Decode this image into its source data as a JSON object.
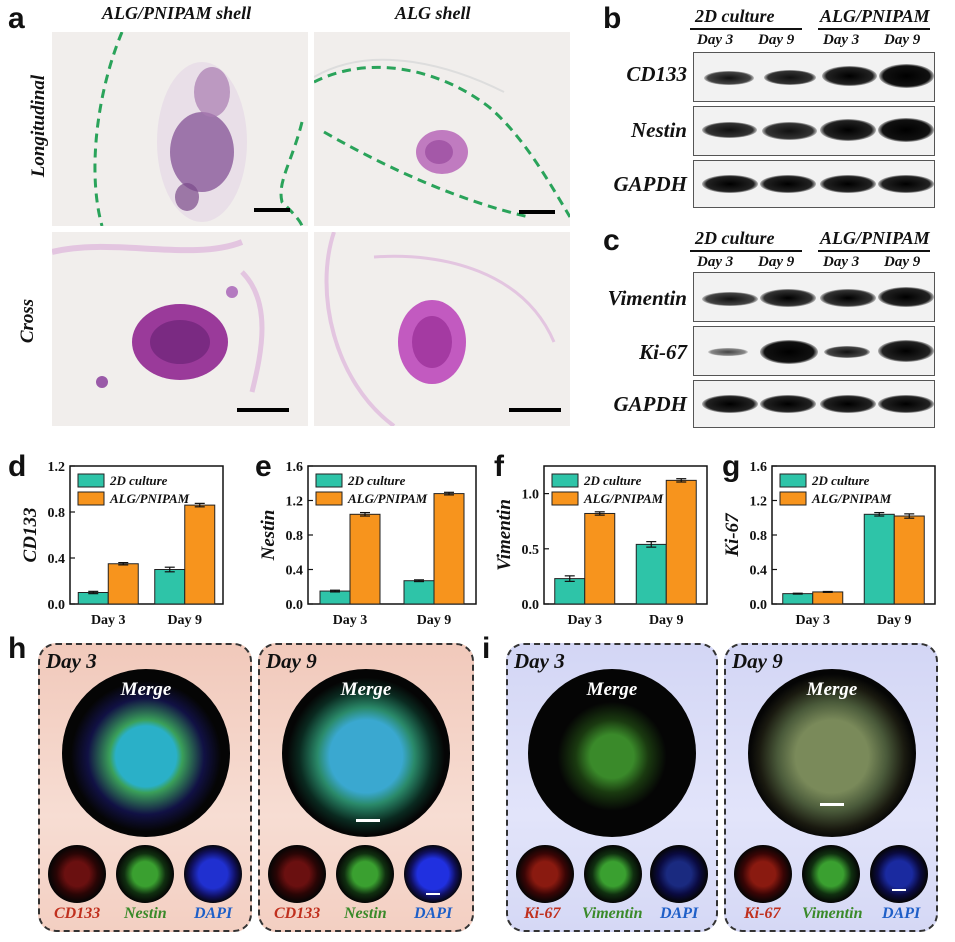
{
  "panel_labels": {
    "a": "a",
    "b": "b",
    "c": "c",
    "d": "d",
    "e": "e",
    "f": "f",
    "g": "g",
    "h": "h",
    "i": "i"
  },
  "histology": {
    "col_headers": [
      "ALG/PNIPAM shell",
      "ALG shell"
    ],
    "row_labels": [
      "Longitudinal",
      "Cross"
    ]
  },
  "western_b": {
    "group_headers": [
      "2D culture",
      "ALG/PNIPAM"
    ],
    "days": [
      "Day 3",
      "Day 9",
      "Day 3",
      "Day 9"
    ],
    "proteins": [
      "CD133",
      "Nestin",
      "GAPDH"
    ]
  },
  "western_c": {
    "group_headers": [
      "2D culture",
      "ALG/PNIPAM"
    ],
    "days": [
      "Day 3",
      "Day 9",
      "Day 3",
      "Day 9"
    ],
    "proteins": [
      "Vimentin",
      "Ki-67",
      "GAPDH"
    ]
  },
  "chart_data": [
    {
      "panel": "d",
      "type": "bar",
      "ylabel": "CD133",
      "categories": [
        "Day 3",
        "Day 9"
      ],
      "ylim": [
        0,
        1.2
      ],
      "yticks": [
        "0.0",
        "0.4",
        "0.8",
        "1.2"
      ],
      "series": [
        {
          "name": "2D culture",
          "color": "#2ec4a8",
          "values": [
            0.1,
            0.3
          ],
          "errors": [
            0.01,
            0.02
          ]
        },
        {
          "name": "ALG/PNIPAM",
          "color": "#f7941d",
          "values": [
            0.35,
            0.86
          ],
          "errors": [
            0.01,
            0.015
          ]
        }
      ],
      "legend": "top-left"
    },
    {
      "panel": "e",
      "type": "bar",
      "ylabel": "Nestin",
      "categories": [
        "Day 3",
        "Day 9"
      ],
      "ylim": [
        0,
        1.6
      ],
      "yticks": [
        "0.0",
        "0.4",
        "0.8",
        "1.2",
        "1.6"
      ],
      "series": [
        {
          "name": "2D culture",
          "color": "#2ec4a8",
          "values": [
            0.15,
            0.27
          ],
          "errors": [
            0.01,
            0.01
          ]
        },
        {
          "name": "ALG/PNIPAM",
          "color": "#f7941d",
          "values": [
            1.04,
            1.28
          ],
          "errors": [
            0.02,
            0.015
          ]
        }
      ],
      "legend": "top-left"
    },
    {
      "panel": "f",
      "type": "bar",
      "ylabel": "Vimentin",
      "categories": [
        "Day 3",
        "Day 9"
      ],
      "ylim": [
        0,
        1.25
      ],
      "yticks": [
        "0.0",
        "0.5",
        "1.0"
      ],
      "series": [
        {
          "name": "2D culture",
          "color": "#2ec4a8",
          "values": [
            0.23,
            0.54
          ],
          "errors": [
            0.025,
            0.025
          ]
        },
        {
          "name": "ALG/PNIPAM",
          "color": "#f7941d",
          "values": [
            0.82,
            1.12
          ],
          "errors": [
            0.015,
            0.015
          ]
        }
      ],
      "legend": "top-left"
    },
    {
      "panel": "g",
      "type": "bar",
      "ylabel": "Ki-67",
      "categories": [
        "Day 3",
        "Day 9"
      ],
      "ylim": [
        0,
        1.6
      ],
      "yticks": [
        "0.0",
        "0.4",
        "0.8",
        "1.2",
        "1.6"
      ],
      "series": [
        {
          "name": "2D culture",
          "color": "#2ec4a8",
          "values": [
            0.12,
            1.04
          ],
          "errors": [
            0.005,
            0.02
          ]
        },
        {
          "name": "ALG/PNIPAM",
          "color": "#f7941d",
          "values": [
            0.14,
            1.02
          ],
          "errors": [
            0.005,
            0.025
          ]
        }
      ],
      "legend": "top-left"
    }
  ],
  "immuno_h": {
    "days": [
      "Day 3",
      "Day 9"
    ],
    "merge_label": "Merge",
    "channels": [
      "CD133",
      "Nestin",
      "DAPI"
    ]
  },
  "immuno_i": {
    "days": [
      "Day 3",
      "Day 9"
    ],
    "merge_label": "Merge",
    "channels": [
      "Ki-67",
      "Vimentin",
      "DAPI"
    ]
  },
  "colors": {
    "teal": "#2ec4a8",
    "orange": "#f7941d",
    "red_channel": "#c0301e",
    "green_channel": "#3a9a2a",
    "blue_channel": "#1f5fc8"
  }
}
